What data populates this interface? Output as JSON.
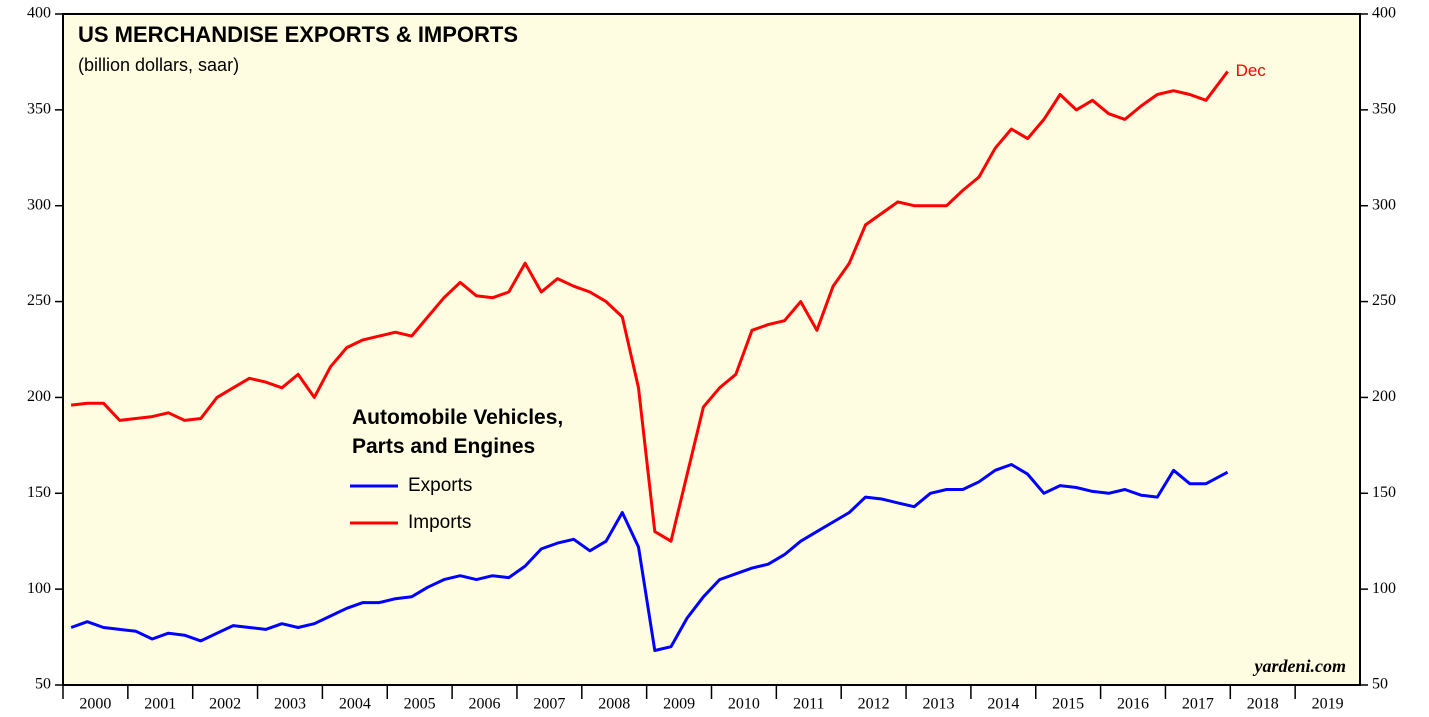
{
  "chart_data": {
    "type": "line",
    "title": "US MERCHANDISE EXPORTS & IMPORTS",
    "subtitle": "(billion dollars, saar)",
    "legend_title": [
      "Automobile Vehicles,",
      "Parts and Engines"
    ],
    "annotation": "Dec",
    "source": "yardeni.com",
    "x": [
      2000.125,
      2000.375,
      2000.625,
      2000.875,
      2001.125,
      2001.375,
      2001.625,
      2001.875,
      2002.125,
      2002.375,
      2002.625,
      2002.875,
      2003.125,
      2003.375,
      2003.625,
      2003.875,
      2004.125,
      2004.375,
      2004.625,
      2004.875,
      2005.125,
      2005.375,
      2005.625,
      2005.875,
      2006.125,
      2006.375,
      2006.625,
      2006.875,
      2007.125,
      2007.375,
      2007.625,
      2007.875,
      2008.125,
      2008.375,
      2008.625,
      2008.875,
      2009.125,
      2009.375,
      2009.625,
      2009.875,
      2010.125,
      2010.375,
      2010.625,
      2010.875,
      2011.125,
      2011.375,
      2011.625,
      2011.875,
      2012.125,
      2012.375,
      2012.625,
      2012.875,
      2013.125,
      2013.375,
      2013.625,
      2013.875,
      2014.125,
      2014.375,
      2014.625,
      2014.875,
      2015.125,
      2015.375,
      2015.625,
      2015.875,
      2016.125,
      2016.375,
      2016.625,
      2016.875,
      2017.125,
      2017.375,
      2017.625,
      2017.958
    ],
    "series": [
      {
        "name": "Exports",
        "color": "#0000ff",
        "values": [
          80,
          83,
          80,
          79,
          78,
          74,
          77,
          76,
          73,
          77,
          81,
          80,
          79,
          82,
          80,
          82,
          86,
          90,
          93,
          93,
          95,
          96,
          101,
          105,
          107,
          105,
          107,
          106,
          112,
          121,
          124,
          126,
          120,
          125,
          140,
          122,
          68,
          70,
          85,
          96,
          105,
          108,
          111,
          113,
          118,
          125,
          130,
          135,
          140,
          148,
          147,
          145,
          143,
          150,
          152,
          152,
          156,
          162,
          165,
          160,
          150,
          154,
          153,
          151,
          150,
          152,
          149,
          148,
          162,
          155,
          155,
          161
        ]
      },
      {
        "name": "Imports",
        "color": "#ff0000",
        "values": [
          196,
          197,
          197,
          188,
          189,
          190,
          192,
          188,
          189,
          200,
          205,
          210,
          208,
          205,
          212,
          200,
          216,
          226,
          230,
          232,
          234,
          232,
          242,
          252,
          260,
          253,
          252,
          255,
          270,
          255,
          262,
          258,
          255,
          250,
          242,
          205,
          130,
          125,
          160,
          195,
          205,
          212,
          235,
          238,
          240,
          250,
          235,
          258,
          270,
          290,
          296,
          302,
          300,
          300,
          300,
          308,
          315,
          330,
          340,
          335,
          345,
          358,
          350,
          355,
          348,
          345,
          352,
          358,
          360,
          358,
          355,
          370
        ]
      }
    ],
    "xlim": [
      2000,
      2020
    ],
    "xticks": [
      2000,
      2001,
      2002,
      2003,
      2004,
      2005,
      2006,
      2007,
      2008,
      2009,
      2010,
      2011,
      2012,
      2013,
      2014,
      2015,
      2016,
      2017,
      2018,
      2019
    ],
    "ylim": [
      50,
      400
    ],
    "yticks": [
      50,
      100,
      150,
      200,
      250,
      300,
      350,
      400
    ],
    "y2lim": [
      50,
      400
    ],
    "y2ticks": [
      50,
      100,
      150,
      200,
      250,
      300,
      350,
      400
    ],
    "background": "#fffde1"
  }
}
